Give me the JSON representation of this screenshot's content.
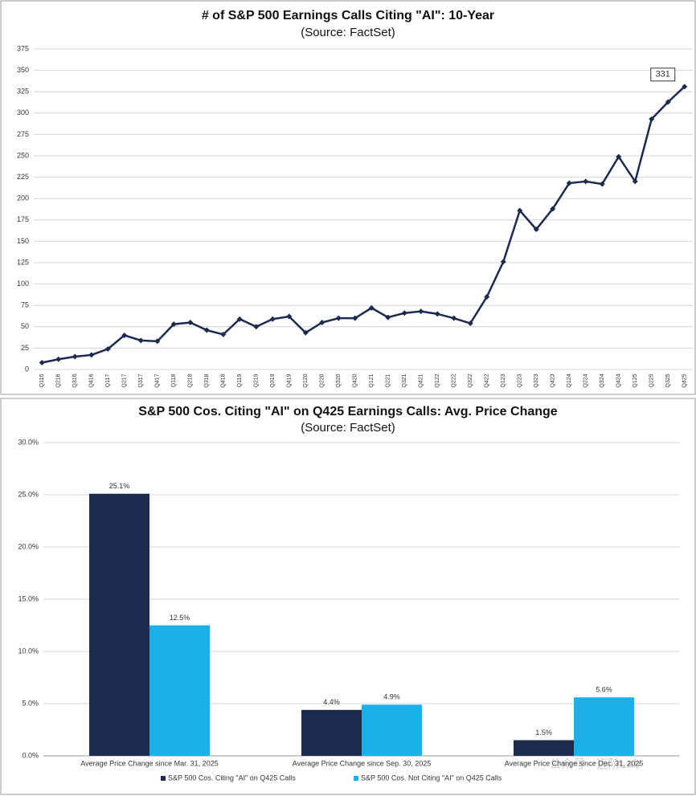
{
  "chart_data": [
    {
      "type": "line",
      "title": "# of S&P 500 Earnings Calls Citing \"AI\": 10-Year",
      "subtitle": "(Source: FactSet)",
      "categories": [
        "Q116",
        "Q216",
        "Q316",
        "Q416",
        "Q117",
        "Q217",
        "Q317",
        "Q417",
        "Q118",
        "Q218",
        "Q318",
        "Q418",
        "Q119",
        "Q219",
        "Q319",
        "Q419",
        "Q120",
        "Q220",
        "Q320",
        "Q420",
        "Q121",
        "Q221",
        "Q321",
        "Q421",
        "Q122",
        "Q222",
        "Q322",
        "Q422",
        "Q123",
        "Q223",
        "Q323",
        "Q423",
        "Q124",
        "Q224",
        "Q324",
        "Q424",
        "Q125",
        "Q225",
        "Q325",
        "Q425"
      ],
      "values": [
        8,
        12,
        15,
        17,
        24,
        40,
        34,
        33,
        53,
        55,
        46,
        41,
        59,
        50,
        59,
        62,
        43,
        55,
        60,
        60,
        72,
        61,
        66,
        68,
        65,
        60,
        54,
        85,
        126,
        186,
        164,
        188,
        218,
        220,
        217,
        249,
        220,
        293,
        313,
        331
      ],
      "color": "#1b2a4e",
      "ylim": [
        0,
        375
      ],
      "yticks": [
        0,
        25,
        50,
        75,
        100,
        125,
        150,
        175,
        200,
        225,
        250,
        275,
        300,
        325,
        350,
        375
      ],
      "grid": true
    },
    {
      "type": "bar",
      "title": "S&P 500 Cos. Citing \"AI\" on Q425 Earnings Calls: Avg. Price Change",
      "subtitle": "(Source: FactSet)",
      "categories": [
        "Average Price Change since Mar. 31, 2025",
        "Average Price Change since Sep. 30, 2025",
        "Average Price Change since Dec. 31, 2025"
      ],
      "series": [
        {
          "name": "S&P 500 Cos. Citing \"AI\" on Q425 Calls",
          "color": "#1b2a4e",
          "values": [
            25.1,
            4.4,
            1.5
          ],
          "value_labels": [
            "25.1%",
            "4.4%",
            "1.5%"
          ]
        },
        {
          "name": "S&P 500 Cos. Not Citing \"AI\" on Q425 Calls",
          "color": "#1ab0e8",
          "values": [
            12.5,
            4.9,
            5.6
          ],
          "value_labels": [
            "12.5%",
            "4.9%",
            "5.6%"
          ]
        }
      ],
      "ylim": [
        0,
        30
      ],
      "yticks": [
        {
          "value": 0,
          "label": "0.0%"
        },
        {
          "value": 5,
          "label": "5.0%"
        },
        {
          "value": 10,
          "label": "10.0%"
        },
        {
          "value": 15,
          "label": "15.0%"
        },
        {
          "value": 20,
          "label": "20.0%"
        },
        {
          "value": 25,
          "label": "25.0%"
        },
        {
          "value": 30,
          "label": "30.0%"
        }
      ],
      "grid": true,
      "legend": "bottom"
    }
  ],
  "watermark": "公众号 · 迈阶Lab"
}
